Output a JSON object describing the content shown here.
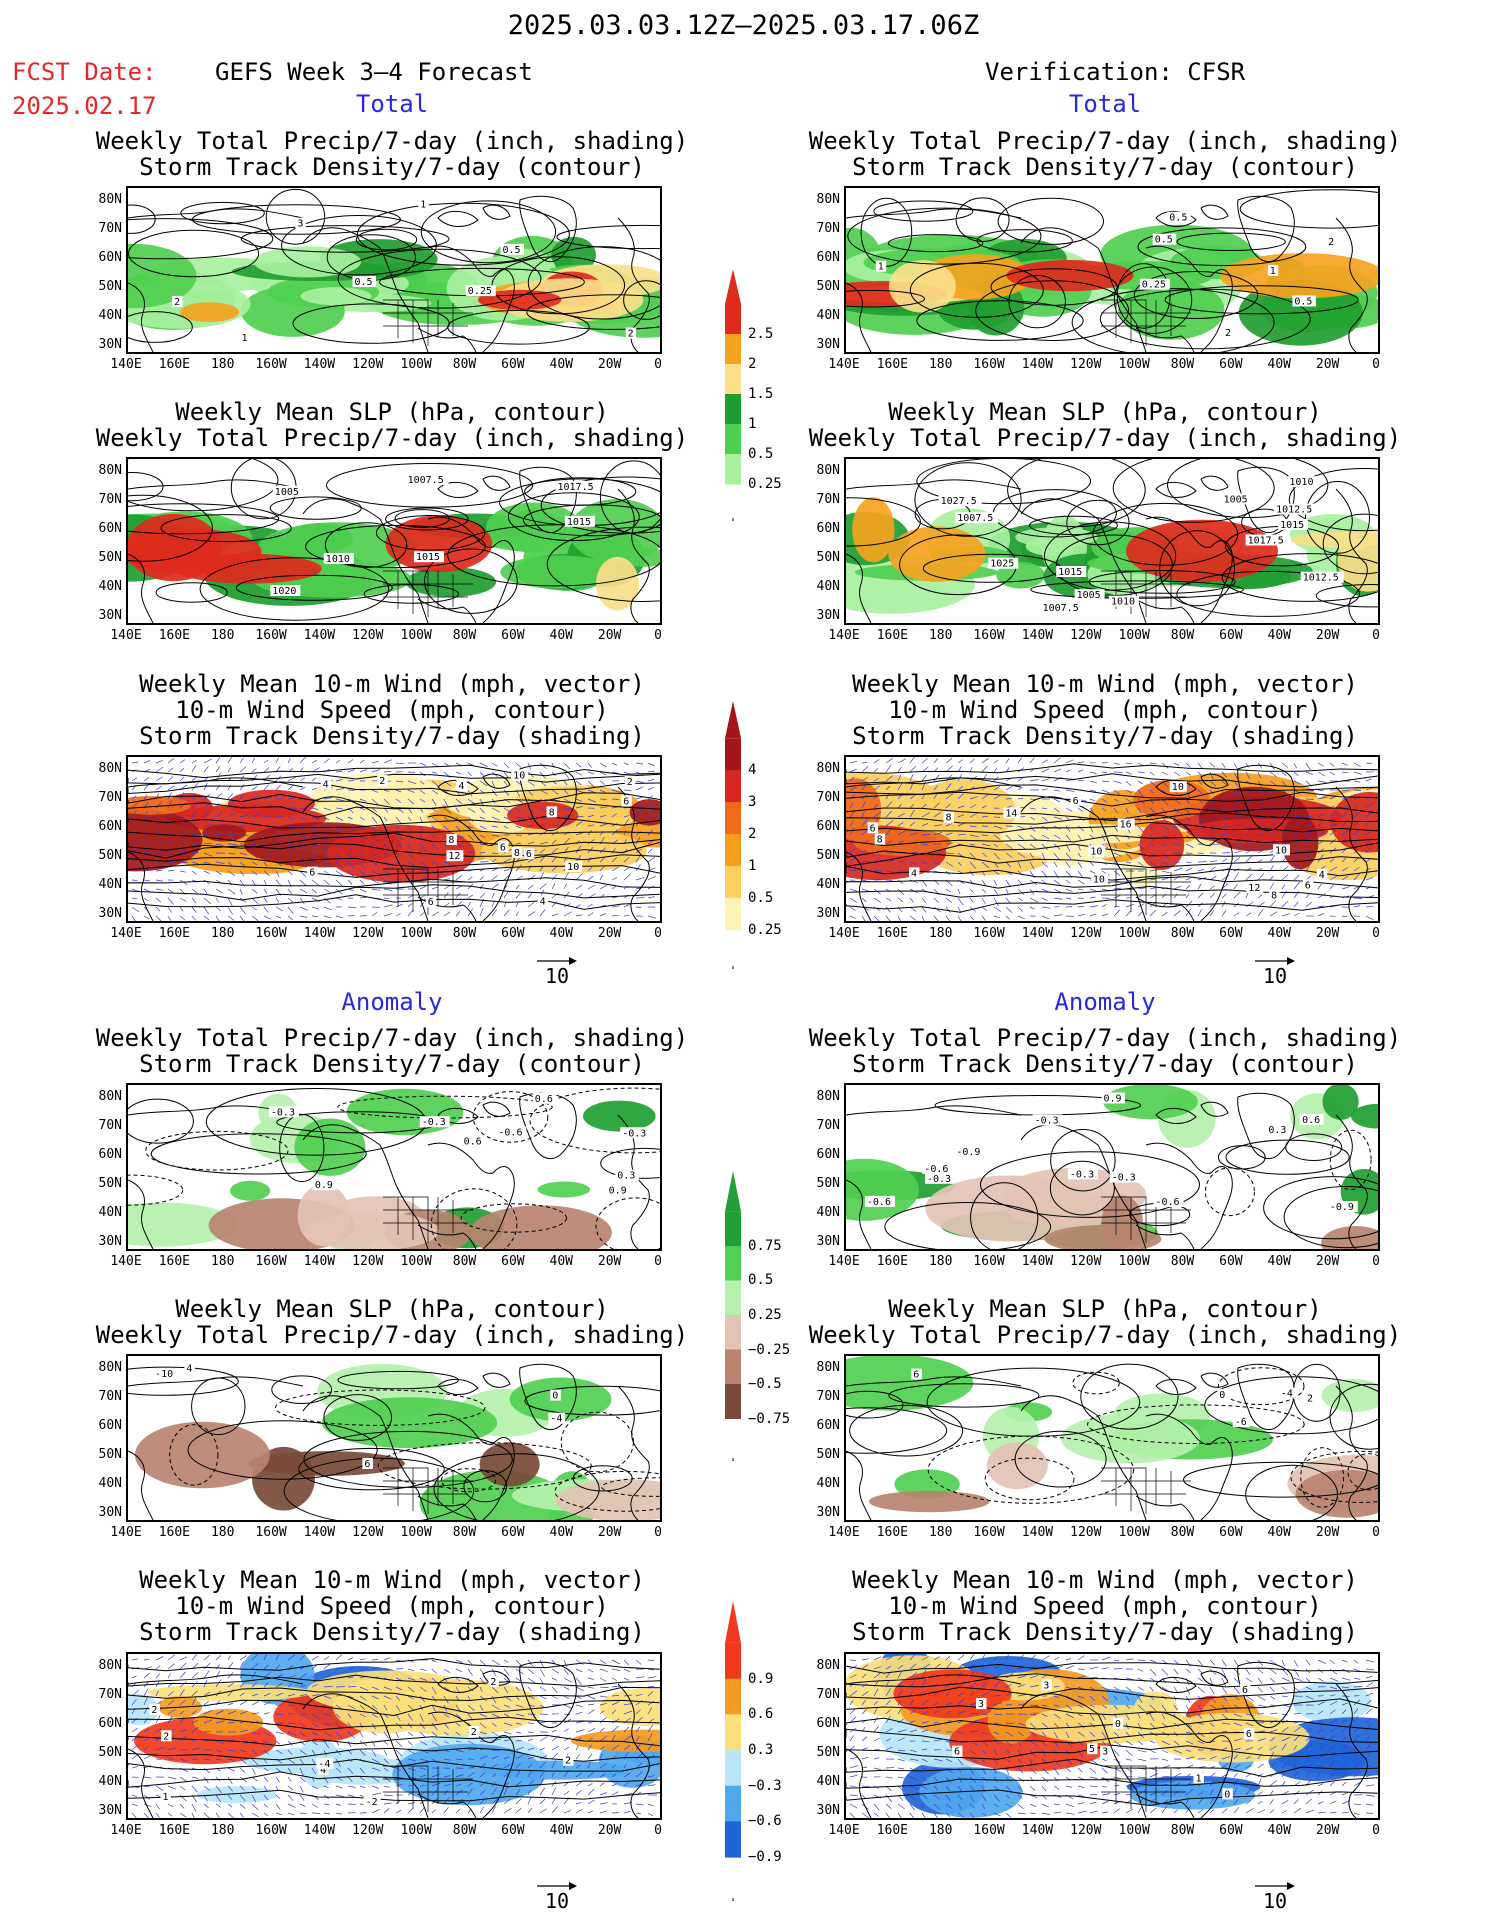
{
  "header": {
    "title": "2025.03.03.12Z‒2025.03.17.06Z",
    "fcst_date_label": "FCST Date:",
    "fcst_date_value": "2025.02.17",
    "left_column": "GEFS Week 3‒4 Forecast",
    "right_column": "Verification: CFSR"
  },
  "sections": {
    "total": "Total",
    "anomaly": "Anomaly"
  },
  "titles": {
    "precip_storm": [
      "Weekly Total Precip/7‑day (inch, shading)",
      "Storm Track Density/7‑day (contour)"
    ],
    "slp_precip": [
      "Weekly Mean SLP (hPa, contour)",
      "Weekly Total Precip/7‑day (inch, shading)"
    ],
    "wind_storm": [
      "Weekly Mean 10‑m Wind (mph, vector)",
      "10‑m Wind Speed (mph, contour)",
      "Storm Track Density/7‑day (shading)"
    ]
  },
  "axes": {
    "lat": [
      "80N",
      "70N",
      "60N",
      "50N",
      "40N",
      "30N"
    ],
    "lon": [
      "140E",
      "160E",
      "180",
      "160W",
      "140W",
      "120W",
      "100W",
      "80W",
      "60W",
      "40W",
      "20W",
      "0"
    ]
  },
  "vector_reference": "10",
  "colorbars": {
    "precip_total": {
      "labels": [
        "2.5",
        "2",
        "1.5",
        "1",
        "0.5",
        "0.25"
      ],
      "colors": [
        "#e02a1c",
        "#f5a31f",
        "#fbe08a",
        "#1f9e30",
        "#4fcf4f",
        "#a8f0a0"
      ]
    },
    "storm_total": {
      "labels": [
        "4",
        "3",
        "2",
        "1",
        "0.5",
        "0.25"
      ],
      "colors": [
        "#a3171b",
        "#d8271f",
        "#f06a1c",
        "#f59e1c",
        "#fbcf5e",
        "#fdf3b3"
      ]
    },
    "precip_anom": {
      "labels": [
        "0.75",
        "0.5",
        "0.25",
        "−0.25",
        "−0.5",
        "−0.75"
      ],
      "colors": [
        "#20a032",
        "#50cf50",
        "#b5f1ac",
        "#e3c3b5",
        "#b98370",
        "#7a4a3a"
      ]
    },
    "storm_anom": {
      "labels": [
        "0.9",
        "0.6",
        "0.3",
        "−0.3",
        "−0.6",
        "−0.9"
      ],
      "colors": [
        "#f0381c",
        "#f59a22",
        "#fbe07a",
        "#b7e6f7",
        "#4fa8ee",
        "#1f65d8"
      ]
    }
  },
  "colors": {
    "fcst_red": "#e8262b",
    "section_blue": "#2828e0",
    "vector_blue": "#3a3ad8"
  },
  "panel_labels": {
    "fcst_precip_storm": [
      "0.5",
      "0.5",
      "1",
      "1",
      "2",
      "2",
      "3",
      "0.25"
    ],
    "cfsr_precip_storm": [
      "2",
      "1",
      "0.5",
      "0.5",
      "0.25",
      "2",
      "1",
      "0.5"
    ],
    "fcst_slp": [
      "1015",
      "1010",
      "1007.5",
      "1005",
      "1020",
      "1015",
      "1017.5"
    ],
    "cfsr_slp": [
      "1027.5",
      "1025",
      "1017.5",
      "1015",
      "1012.5",
      "1005",
      "1007.5",
      "1010",
      "1012.5",
      "1015",
      "1010",
      "1007.5",
      "1005"
    ],
    "fcst_wind": [
      "4",
      "6",
      "8",
      "10",
      "8",
      "2",
      "4",
      "6",
      "2",
      "8",
      "6",
      "12",
      "6",
      "4",
      "10",
      "6"
    ],
    "cfsr_wind": [
      "4",
      "8",
      "8",
      "10",
      "12",
      "6",
      "4",
      "10",
      "6",
      "10",
      "8",
      "6",
      "16",
      "14",
      "10"
    ],
    "fcst_precip_anom": [
      "-0.3",
      "0.3",
      "-0.3",
      "0.9",
      "0.6",
      "-0.6",
      "-0.3",
      "0.9",
      "0.6"
    ],
    "cfsr_precip_anom": [
      "0.9",
      "0.3",
      "-0.3",
      "-0.6",
      "-0.3",
      "-0.6",
      "-0.9",
      "-0.6",
      "-0.3",
      "-0.3",
      "0.6",
      "-0.9"
    ],
    "fcst_slp_anom": [
      "-4",
      "0",
      "-10",
      "6",
      "4"
    ],
    "cfsr_slp_anom": [
      "2",
      "6",
      "-4",
      "0",
      "-6"
    ],
    "fcst_wind_anom": [
      "2",
      "2",
      "2",
      "4",
      "2",
      "1",
      "-2",
      "-4",
      "2"
    ],
    "cfsr_wind_anom": [
      "6",
      "6",
      "3",
      "3",
      "5",
      "6",
      "3",
      "1",
      "0",
      "0"
    ]
  }
}
